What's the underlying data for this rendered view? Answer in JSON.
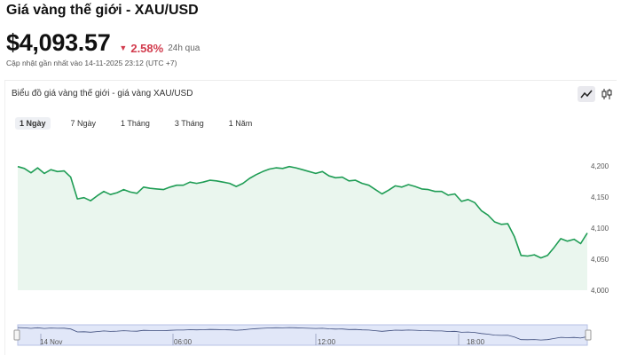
{
  "header": {
    "title": "Giá vàng thế giới - XAU/USD",
    "price": "$4,093.57",
    "change": "2.58%",
    "change_direction": "down",
    "change_period": "24h qua",
    "updated": "Cập nhật gần nhất vào 14-11-2025 23:12 (UTC +7)"
  },
  "chart_panel": {
    "heading": "Biểu đồ giá vàng thế giới - giá vàng XAU/USD",
    "tabs": [
      {
        "label": "1 Ngày",
        "active": true
      },
      {
        "label": "7 Ngày",
        "active": false
      },
      {
        "label": "1 Tháng",
        "active": false
      },
      {
        "label": "3 Tháng",
        "active": false
      },
      {
        "label": "1 Năm",
        "active": false
      }
    ],
    "view_icons": [
      "line-chart-icon",
      "candlestick-icon"
    ]
  },
  "colors": {
    "line": "#1f9d55",
    "area": "#eaf6ee",
    "down": "#d23b4d",
    "navigator": "#c9d3f2"
  },
  "chart_data": {
    "type": "area",
    "y_ticks": [
      "4,200",
      "4,150",
      "4,100",
      "4,050",
      "4,000"
    ],
    "ylim": [
      4000,
      4200
    ],
    "navigator_labels": [
      "14 Nov",
      "06:00",
      "12:00",
      "18:00"
    ],
    "values": [
      4199,
      4196,
      4189,
      4197,
      4188,
      4194,
      4191,
      4192,
      4182,
      4147,
      4149,
      4144,
      4152,
      4159,
      4154,
      4157,
      4162,
      4158,
      4156,
      4166,
      4164,
      4163,
      4162,
      4166,
      4169,
      4169,
      4174,
      4172,
      4174,
      4177,
      4176,
      4174,
      4172,
      4167,
      4172,
      4180,
      4186,
      4191,
      4195,
      4197,
      4196,
      4199,
      4197,
      4194,
      4191,
      4188,
      4191,
      4184,
      4181,
      4182,
      4176,
      4177,
      4172,
      4169,
      4162,
      4155,
      4161,
      4168,
      4166,
      4170,
      4167,
      4163,
      4162,
      4159,
      4159,
      4153,
      4155,
      4143,
      4146,
      4141,
      4128,
      4121,
      4110,
      4106,
      4107,
      4086,
      4056,
      4055,
      4057,
      4052,
      4056,
      4069,
      4083,
      4079,
      4082,
      4075,
      4092
    ]
  }
}
